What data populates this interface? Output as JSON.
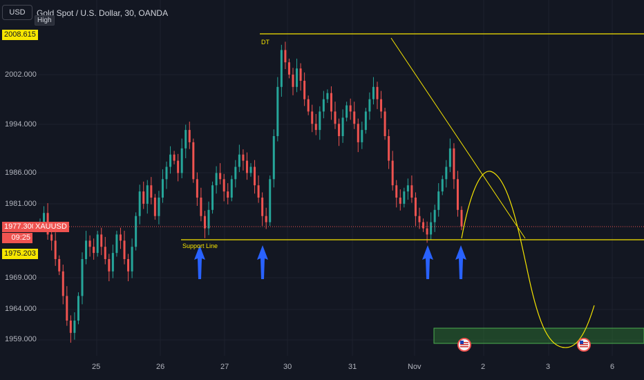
{
  "header": {
    "currency": "USD",
    "title": "Gold Spot / U.S. Dollar, 30, OANDA",
    "high_badge": "High"
  },
  "colors": {
    "background": "#131722",
    "up": "#26a69a",
    "down": "#ef5350",
    "trendline": "#f7e600",
    "target_zone": "#1b5e20",
    "arrow": "#2962ff",
    "current_price_line": "#ef5350"
  },
  "price_axis": {
    "ticks": [
      "2002.000",
      "1994.000",
      "1986.000",
      "1981.000",
      "1969.000",
      "1964.000",
      "1959.000"
    ]
  },
  "price_tags": {
    "high": "2008.615",
    "current_symbol": "XAUUSD",
    "current": "1977.300",
    "countdown": "09:25",
    "support": "1975.203"
  },
  "time_axis": {
    "ticks": [
      "25",
      "26",
      "27",
      "30",
      "31",
      "Nov",
      "2",
      "3",
      "6"
    ]
  },
  "annotations": {
    "double_top": "DT",
    "support_line": "Support Line"
  },
  "chart_data": {
    "type": "candlestick",
    "title": "Gold Spot / U.S. Dollar, 30, OANDA",
    "resistance_level": 2008.615,
    "support_level": 1975.203,
    "current_price": 1977.3,
    "close_series": [
      1978,
      1979.5,
      1976,
      1975,
      1972,
      1970,
      1966,
      1962,
      1960,
      1962,
      1966,
      1972,
      1975,
      1974,
      1973,
      1976,
      1974,
      1972,
      1970,
      1973,
      1976,
      1975,
      1972,
      1970,
      1974,
      1979,
      1983,
      1981,
      1984,
      1982,
      1979,
      1982,
      1985,
      1987,
      1989,
      1988,
      1986,
      1990,
      1993,
      1991,
      1985,
      1982,
      1979,
      1977,
      1980,
      1984,
      1986,
      1985,
      1983,
      1982,
      1985,
      1987,
      1989,
      1988,
      1986,
      1987,
      1984,
      1982,
      1979,
      1978,
      1985,
      1992,
      2000,
      2006,
      2004,
      2002,
      2000,
      2003,
      2001,
      1998,
      1996,
      1994,
      1993,
      1996,
      1998,
      1999,
      1996,
      1994,
      1992,
      1995,
      1997,
      1996,
      1994,
      1991,
      1993,
      1996,
      1998,
      2000,
      1998,
      1996,
      1992,
      1988,
      1984,
      1982,
      1981,
      1983,
      1984,
      1982,
      1979,
      1978,
      1977,
      1976,
      1978,
      1980,
      1983,
      1985,
      1987,
      1990,
      1985,
      1980,
      1977.3
    ],
    "forecast_path": "rise to about 1986, then drop toward the 1959-1960 target zone, then recover",
    "target_zone": [
      1959.0,
      1961.0
    ]
  }
}
